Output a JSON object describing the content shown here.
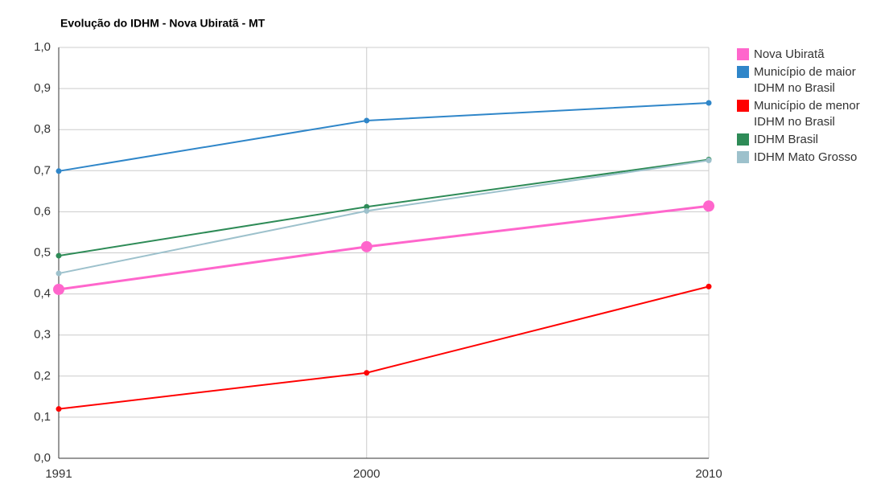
{
  "chart_data": {
    "type": "line",
    "title": "Evolução do IDHM - Nova Ubiratã - MT",
    "x": [
      1991,
      2000,
      2010
    ],
    "xlim": [
      1991,
      2010
    ],
    "xticks": [
      1991,
      2000,
      2010
    ],
    "ylim": [
      0,
      1
    ],
    "yticks": [
      {
        "value": 0,
        "label": "0,0"
      },
      {
        "value": 0.1,
        "label": "0,1"
      },
      {
        "value": 0.2,
        "label": "0,2"
      },
      {
        "value": 0.3,
        "label": "0,3"
      },
      {
        "value": 0.4,
        "label": "0,4"
      },
      {
        "value": 0.5,
        "label": "0,5"
      },
      {
        "value": 0.6,
        "label": "0,6"
      },
      {
        "value": 0.7,
        "label": "0,7"
      },
      {
        "value": 0.8,
        "label": "0,8"
      },
      {
        "value": 0.9,
        "label": "0,9"
      },
      {
        "value": 1,
        "label": "1,0"
      }
    ],
    "grid": true,
    "legend": "right",
    "series": [
      {
        "name": "Nova Ubiratã",
        "color": "#ff66cc",
        "values": [
          0.411,
          0.515,
          0.614
        ]
      },
      {
        "name": "Município de maior IDHM no Brasil",
        "color": "#2f86c9",
        "values": [
          0.699,
          0.822,
          0.865
        ]
      },
      {
        "name": "Município de menor IDHM no Brasil",
        "color": "#ff0000",
        "values": [
          0.12,
          0.208,
          0.418
        ]
      },
      {
        "name": "IDHM Brasil",
        "color": "#2e8b57",
        "values": [
          0.493,
          0.612,
          0.727
        ]
      },
      {
        "name": "IDHM Mato Grosso",
        "color": "#9dc1cc",
        "values": [
          0.45,
          0.602,
          0.725
        ]
      }
    ]
  }
}
